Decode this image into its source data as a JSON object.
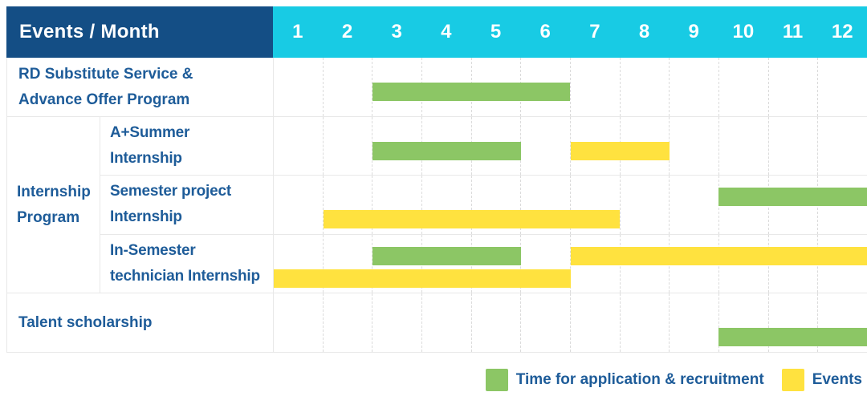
{
  "palette": {
    "header_bg": "#144E85",
    "months_bg": "#18CBE4",
    "header_text": "#FFFFFF",
    "text_blue": "#1E5C99",
    "grid_line": "#E8E8E8",
    "grid_dash": "#DBDBDB"
  },
  "header": {
    "title": "Events / Month"
  },
  "chart_data": {
    "type": "gantt",
    "title": "",
    "x_axis_label": "Month",
    "x_ticks": [
      "1",
      "2",
      "3",
      "4",
      "5",
      "6",
      "7",
      "8",
      "9",
      "10",
      "11",
      "12"
    ],
    "x_range": [
      1,
      12
    ],
    "grid": "vertical-dashed",
    "legend_position": "bottom-right",
    "legend": [
      {
        "id": "application",
        "label": "Time for application & recruitment",
        "color": "#8CC665"
      },
      {
        "id": "events",
        "label": "Events",
        "color": "#FFE23F"
      }
    ],
    "sections": [
      {
        "id": "rd-substitute-service-advance-offer-program",
        "label_lines": [
          "RD Substitute Service &",
          "Advance Offer Program"
        ],
        "bars": [
          {
            "series": "application",
            "start_month": 3,
            "end_month": 6,
            "lane": "single"
          }
        ]
      },
      {
        "id": "internship-program",
        "group_label_lines": [
          "Internship",
          "Program"
        ],
        "rows": [
          {
            "id": "a-plus-summer-internship",
            "label_lines": [
              "A+Summer",
              "Internship"
            ],
            "bars": [
              {
                "series": "application",
                "start_month": 3,
                "end_month": 5,
                "lane": "single"
              },
              {
                "series": "events",
                "start_month": 7,
                "end_month": 8,
                "lane": "single"
              }
            ]
          },
          {
            "id": "semester-project-internship",
            "label_lines": [
              "Semester project",
              "Internship"
            ],
            "bars": [
              {
                "series": "application",
                "start_month": 10,
                "end_month": 12,
                "lane": "top"
              },
              {
                "series": "events",
                "start_month": 2,
                "end_month": 7,
                "lane": "bottom"
              }
            ]
          },
          {
            "id": "in-semester-technician-internship",
            "label_lines": [
              "In-Semester",
              "technician Internship"
            ],
            "bars": [
              {
                "series": "application",
                "start_month": 3,
                "end_month": 5,
                "lane": "top"
              },
              {
                "series": "events",
                "start_month": 7,
                "end_month": 12,
                "lane": "top"
              },
              {
                "series": "events",
                "start_month": 1,
                "end_month": 6,
                "lane": "bottom"
              }
            ]
          }
        ]
      },
      {
        "id": "talent-scholarship",
        "label_lines": [
          "Talent scholarship"
        ],
        "bars": [
          {
            "series": "application",
            "start_month": 10,
            "end_month": 12,
            "lane": "bottom"
          }
        ]
      }
    ]
  }
}
